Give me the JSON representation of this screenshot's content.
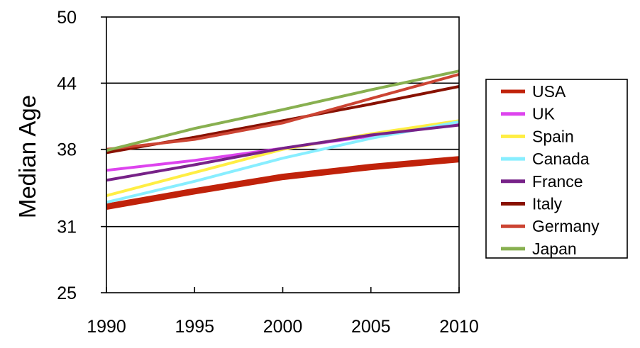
{
  "chart_data": {
    "type": "line",
    "title": "",
    "xlabel": "",
    "ylabel": "Median Age",
    "x": [
      1990,
      1995,
      2000,
      2005,
      2010
    ],
    "xlim": [
      1990,
      2010
    ],
    "ylim": [
      25,
      50
    ],
    "yticks": [
      25,
      31,
      38,
      44,
      50
    ],
    "grid": "horizontal",
    "legend": "right",
    "series": [
      {
        "name": "USA",
        "color": "#c0220a",
        "values": [
          32.8,
          34.2,
          35.5,
          36.4,
          37.1
        ]
      },
      {
        "name": "UK",
        "color": "#dd44ee",
        "values": [
          36.1,
          37.0,
          38.1,
          39.2,
          40.3
        ]
      },
      {
        "name": "Spain",
        "color": "#ffee44",
        "values": [
          33.8,
          35.9,
          38.0,
          39.4,
          40.6
        ]
      },
      {
        "name": "Canada",
        "color": "#88eeff",
        "values": [
          33.2,
          35.1,
          37.2,
          39.0,
          40.5
        ]
      },
      {
        "name": "France",
        "color": "#772288",
        "values": [
          35.2,
          36.6,
          38.1,
          39.3,
          40.2
        ]
      },
      {
        "name": "Italy",
        "color": "#881100",
        "values": [
          37.7,
          39.1,
          40.6,
          42.1,
          43.7
        ]
      },
      {
        "name": "Germany",
        "color": "#cc4433",
        "values": [
          38.0,
          38.9,
          40.4,
          42.6,
          44.8
        ]
      },
      {
        "name": "Japan",
        "color": "#88b050",
        "values": [
          37.9,
          39.9,
          41.6,
          43.4,
          45.1
        ]
      }
    ]
  }
}
